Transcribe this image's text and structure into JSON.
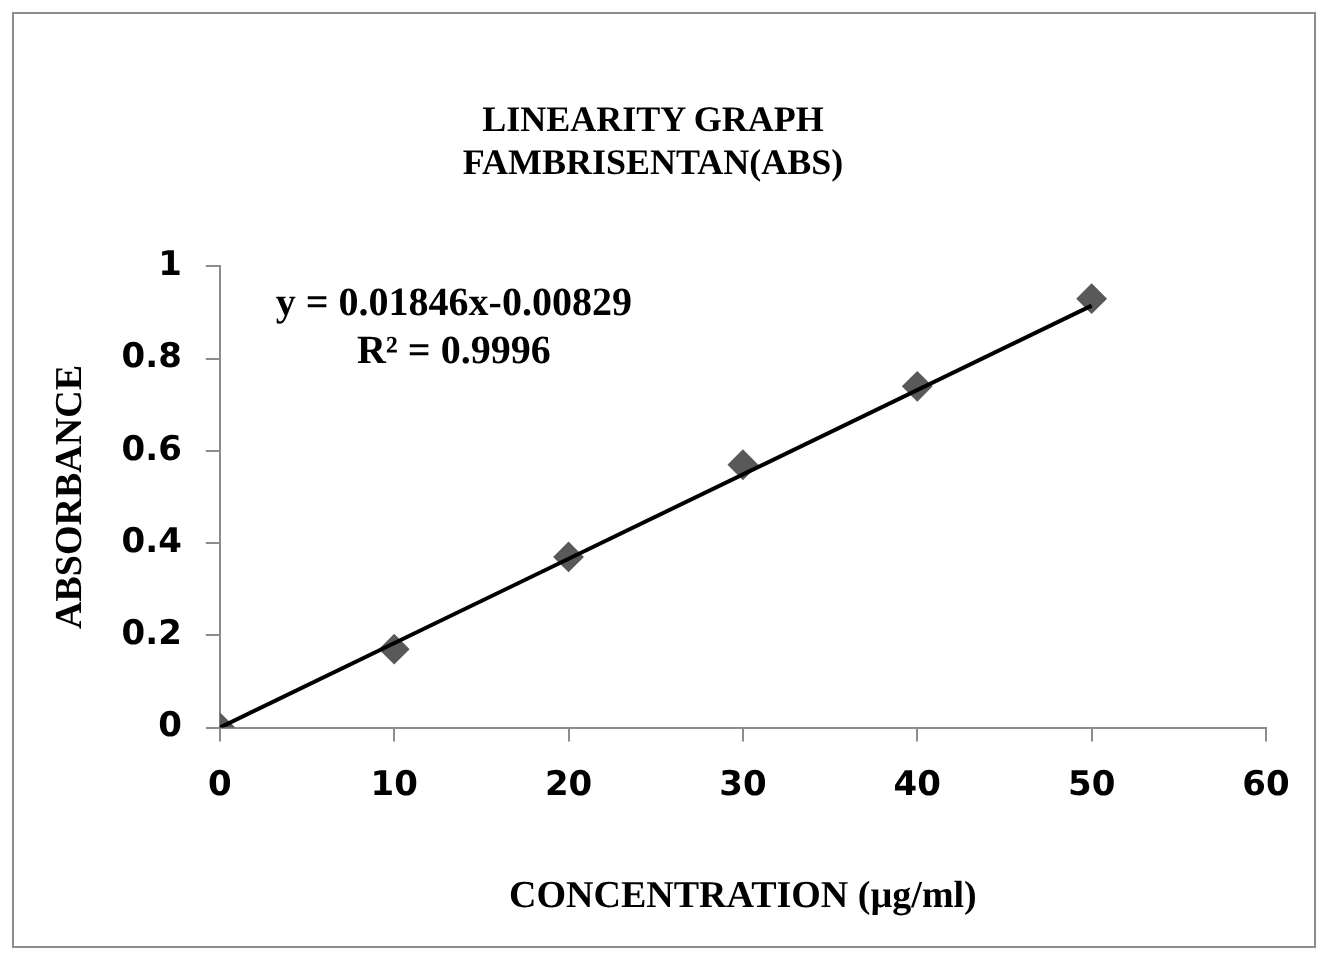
{
  "chart_data": {
    "type": "scatter",
    "title": [
      "LINEARITY GRAPH",
      "FAMBRISENTAN(ABS)"
    ],
    "xlabel": "CONCENTRATION (µg/ml)",
    "ylabel": "ABSORBANCE",
    "series": [
      {
        "color": "#595959",
        "marker": "diamond",
        "x": [
          0,
          10,
          20,
          30,
          40,
          50
        ],
        "values": [
          0,
          0.17,
          0.37,
          0.57,
          0.74,
          0.93
        ]
      },
      {
        "type": "line",
        "color": "#000000",
        "marker": "none",
        "x": [
          0,
          50
        ],
        "values": [
          0,
          0.915
        ]
      }
    ],
    "xlim": [
      0,
      60
    ],
    "xticks": [
      0,
      10,
      20,
      30,
      40,
      50,
      60
    ],
    "ylim": [
      0,
      1
    ],
    "yticks": [
      0,
      0.2,
      0.4,
      0.6,
      0.8,
      1
    ],
    "annotations": [
      "y = 0.01846x-0.00829",
      "R² = 0.9996"
    ],
    "grid": false,
    "legend": false
  }
}
